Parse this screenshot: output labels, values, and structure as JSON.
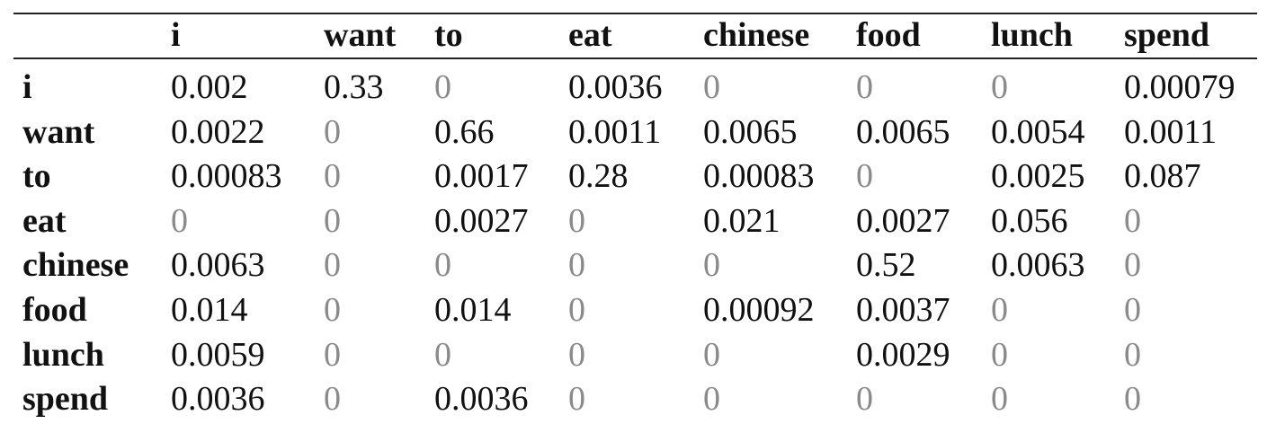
{
  "table": {
    "header": [
      "i",
      "want",
      "to",
      "eat",
      "chinese",
      "food",
      "lunch",
      "spend"
    ],
    "rows": [
      {
        "label": "i",
        "cells": [
          "0.002",
          "0.33",
          "0",
          "0.0036",
          "0",
          "0",
          "0",
          "0.00079"
        ]
      },
      {
        "label": "want",
        "cells": [
          "0.0022",
          "0",
          "0.66",
          "0.0011",
          "0.0065",
          "0.0065",
          "0.0054",
          "0.0011"
        ]
      },
      {
        "label": "to",
        "cells": [
          "0.00083",
          "0",
          "0.0017",
          "0.28",
          "0.00083",
          "0",
          "0.0025",
          "0.087"
        ]
      },
      {
        "label": "eat",
        "cells": [
          "0",
          "0",
          "0.0027",
          "0",
          "0.021",
          "0.0027",
          "0.056",
          "0"
        ]
      },
      {
        "label": "chinese",
        "cells": [
          "0.0063",
          "0",
          "0",
          "0",
          "0",
          "0.52",
          "0.0063",
          "0"
        ]
      },
      {
        "label": "food",
        "cells": [
          "0.014",
          "0",
          "0.014",
          "0",
          "0.00092",
          "0.0037",
          "0",
          "0"
        ]
      },
      {
        "label": "lunch",
        "cells": [
          "0.0059",
          "0",
          "0",
          "0",
          "0",
          "0.0029",
          "0",
          "0"
        ]
      },
      {
        "label": "spend",
        "cells": [
          "0.0036",
          "0",
          "0.0036",
          "0",
          "0",
          "0",
          "0",
          "0"
        ]
      }
    ]
  }
}
